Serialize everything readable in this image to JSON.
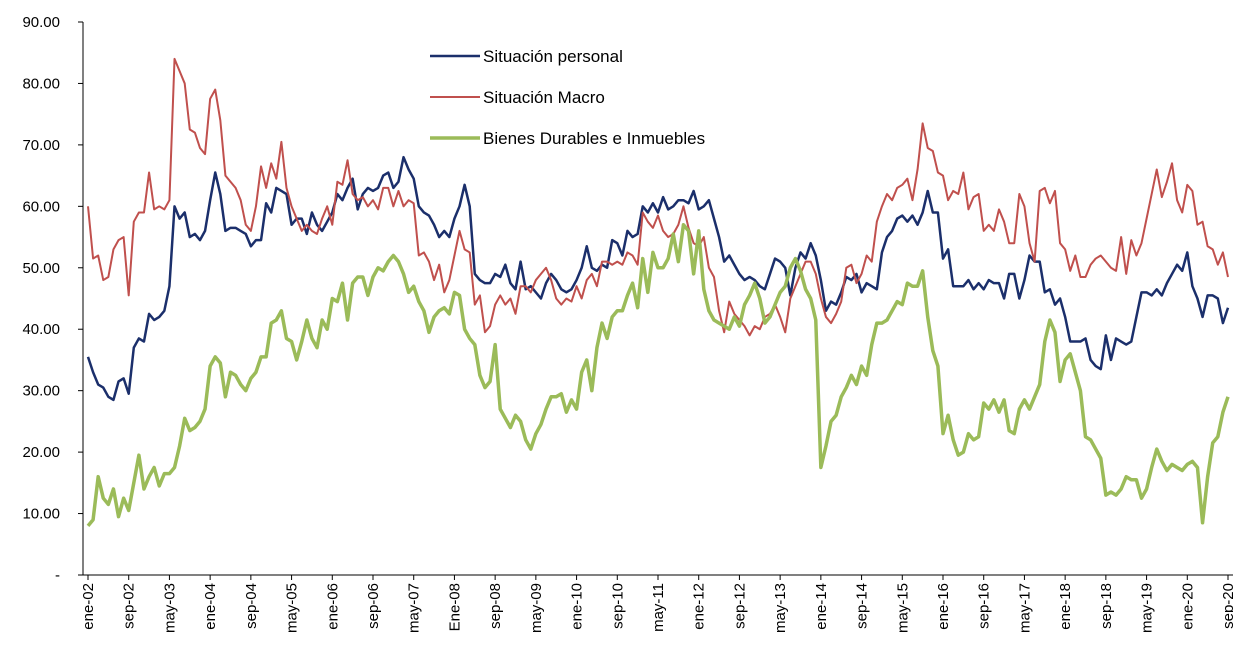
{
  "chart_data": {
    "type": "line",
    "categories": [
      "ene-02",
      null,
      null,
      null,
      null,
      null,
      null,
      null,
      "sep-02",
      null,
      null,
      null,
      null,
      null,
      null,
      null,
      "may-03",
      null,
      null,
      null,
      null,
      null,
      null,
      null,
      "ene-04",
      null,
      null,
      null,
      null,
      null,
      null,
      null,
      "sep-04",
      null,
      null,
      null,
      null,
      null,
      null,
      null,
      "may-05",
      null,
      null,
      null,
      null,
      null,
      null,
      null,
      "ene-06",
      null,
      null,
      null,
      null,
      null,
      null,
      null,
      "sep-06",
      null,
      null,
      null,
      null,
      null,
      null,
      null,
      "may-07",
      null,
      null,
      null,
      null,
      null,
      null,
      null,
      "Ene-08",
      null,
      null,
      null,
      null,
      null,
      null,
      null,
      "sep-08",
      null,
      null,
      null,
      null,
      null,
      null,
      null,
      "may-09",
      null,
      null,
      null,
      null,
      null,
      null,
      null,
      "ene-10",
      null,
      null,
      null,
      null,
      null,
      null,
      null,
      "sep-10",
      null,
      null,
      null,
      null,
      null,
      null,
      null,
      "may-11",
      null,
      null,
      null,
      null,
      null,
      null,
      null,
      "ene-12",
      null,
      null,
      null,
      null,
      null,
      null,
      null,
      "sep-12",
      null,
      null,
      null,
      null,
      null,
      null,
      null,
      "may-13",
      null,
      null,
      null,
      null,
      null,
      null,
      null,
      "ene-14",
      null,
      null,
      null,
      null,
      null,
      null,
      null,
      "sep-14",
      null,
      null,
      null,
      null,
      null,
      null,
      null,
      "may-15",
      null,
      null,
      null,
      null,
      null,
      null,
      null,
      "ene-16",
      null,
      null,
      null,
      null,
      null,
      null,
      null,
      "sep-16",
      null,
      null,
      null,
      null,
      null,
      null,
      null,
      "may-17",
      null,
      null,
      null,
      null,
      null,
      null,
      null,
      "ene-18",
      null,
      null,
      null,
      null,
      null,
      null,
      null,
      "sep-18",
      null,
      null,
      null,
      null,
      null,
      null,
      null,
      "may-19",
      null,
      null,
      null,
      null,
      null,
      null,
      null,
      "ene-20",
      null,
      null,
      null,
      null,
      null,
      null,
      null,
      "sep-20"
    ],
    "series": [
      {
        "name": "Situación personal",
        "color": "#1b2f6b",
        "values": [
          35.5,
          33,
          31,
          30.5,
          29,
          28.5,
          31.5,
          32,
          29.5,
          37,
          38.5,
          38,
          42.5,
          41.5,
          42,
          43,
          47,
          60,
          58,
          59,
          55,
          55.5,
          54.5,
          56,
          61,
          65.5,
          62,
          56,
          56.5,
          56.5,
          56,
          55.5,
          53.5,
          54.5,
          54.5,
          60.5,
          59,
          63,
          62.5,
          62,
          57,
          58,
          58,
          55.5,
          59,
          57,
          56,
          57.5,
          59,
          62,
          61,
          63,
          64.5,
          59.5,
          62,
          63,
          62.5,
          63,
          65,
          65.5,
          63,
          64,
          68,
          66,
          64.5,
          60,
          59,
          58.5,
          57,
          55,
          56,
          55,
          58,
          60,
          63.5,
          60,
          49,
          48,
          47.5,
          47.5,
          49,
          48.5,
          50.5,
          47.5,
          46.5,
          51,
          46.5,
          47,
          46,
          45,
          47.5,
          49,
          48,
          46.5,
          46,
          46.5,
          48,
          50,
          53.5,
          50,
          49.5,
          50.5,
          50,
          54.5,
          54,
          52,
          56,
          55,
          55.5,
          60,
          59,
          60.5,
          59,
          61.5,
          59.5,
          60,
          61,
          61,
          60.5,
          62.5,
          59.5,
          60,
          61,
          58,
          55,
          51,
          52,
          50.5,
          49,
          48,
          48.5,
          48,
          47,
          46.5,
          49,
          51.5,
          51,
          50,
          45.5,
          50,
          52.5,
          51.5,
          54,
          52,
          48,
          43,
          44.5,
          44,
          46,
          48.5,
          48,
          49,
          46,
          47.5,
          47,
          46.5,
          52.5,
          55,
          56,
          58,
          58.5,
          57.5,
          58.5,
          57,
          59,
          62.5,
          59,
          59,
          51.5,
          53,
          47,
          47,
          47,
          48,
          46.5,
          47.5,
          46.5,
          48,
          47.5,
          47.5,
          45,
          49,
          49,
          45,
          48,
          52,
          51,
          51,
          46,
          46.5,
          44,
          45,
          42,
          38,
          38,
          38,
          38.5,
          35,
          34,
          33.5,
          39,
          35,
          38.5,
          38,
          37.5,
          38,
          42,
          46,
          46,
          45.5,
          46.5,
          45.5,
          47.5,
          49,
          50.5,
          49.5,
          52.5,
          47,
          45,
          42,
          45.5,
          45.5,
          45,
          41,
          43.5
        ]
      },
      {
        "name": "Situación Macro",
        "color": "#c0504d",
        "values": [
          60,
          51.5,
          52,
          48,
          48.5,
          53,
          54.5,
          55,
          45.5,
          57.5,
          59,
          59,
          65.5,
          59.5,
          60,
          59.5,
          61,
          84,
          82,
          80,
          72.5,
          72,
          69.5,
          68.5,
          77.5,
          79,
          74,
          65,
          64,
          63,
          61,
          57,
          56,
          60,
          66.5,
          63,
          67,
          64.5,
          70.5,
          63,
          60,
          58,
          56,
          57,
          56,
          55.5,
          58,
          60,
          57,
          64,
          63.5,
          67.5,
          62,
          61,
          61.5,
          60,
          61,
          59.5,
          63,
          63,
          60,
          62.5,
          60,
          61,
          60.5,
          52,
          52.5,
          51,
          48,
          50.5,
          46,
          48,
          52,
          56,
          53,
          52.5,
          44,
          45.5,
          39.5,
          40.5,
          44,
          45.5,
          44,
          45,
          42.5,
          47,
          47,
          46,
          48,
          49,
          50,
          48,
          45,
          44,
          45,
          44.5,
          47,
          45,
          48,
          49,
          47,
          51,
          51,
          50.5,
          51,
          50.5,
          52.5,
          52,
          50.5,
          59,
          57.5,
          56.5,
          58.5,
          56,
          55,
          55.5,
          57,
          60,
          56.5,
          54,
          53.5,
          55,
          50,
          48.5,
          43,
          39.5,
          44.5,
          42.5,
          41.5,
          40.5,
          39,
          40.5,
          40,
          42,
          42.5,
          44,
          42,
          39.5,
          45,
          47,
          49,
          51,
          51,
          49,
          45,
          42,
          41,
          42.5,
          44.5,
          50,
          50.5,
          47.5,
          49,
          52,
          51,
          57.5,
          60,
          62,
          61,
          63,
          63.5,
          64.5,
          61,
          66,
          73.5,
          69.5,
          69,
          65.5,
          65,
          61,
          62.5,
          62,
          65.5,
          59.5,
          61.5,
          62,
          56,
          57,
          56,
          59.5,
          57.5,
          54,
          54,
          62,
          60,
          54,
          51,
          62.5,
          63,
          60.5,
          62.5,
          54,
          53,
          49.5,
          52,
          48.5,
          48.5,
          50.5,
          51.5,
          52,
          51,
          50,
          49.5,
          55,
          49,
          54.5,
          52,
          54,
          58,
          62,
          66,
          61.5,
          64,
          67,
          61,
          59,
          63.5,
          62.5,
          57,
          57.5,
          53.5,
          53,
          50.5,
          52.5,
          48.5
        ]
      },
      {
        "name": "Bienes Durables e Inmuebles",
        "color": "#9bbb59",
        "values": [
          8,
          9,
          16,
          12.5,
          11.5,
          14,
          9.5,
          12.5,
          10.5,
          15,
          19.5,
          14,
          16,
          17.5,
          14.5,
          16.5,
          16.5,
          17.5,
          21,
          25.5,
          23.5,
          24,
          25,
          27,
          34,
          35.5,
          34.5,
          29,
          33,
          32.5,
          31,
          30,
          32,
          33,
          35.5,
          35.5,
          41,
          41.5,
          43,
          38.5,
          38,
          35,
          38,
          41.5,
          38.5,
          37,
          41.5,
          40,
          45,
          44.5,
          47.5,
          41.5,
          47.5,
          48.5,
          48.5,
          45.5,
          48.5,
          50,
          49.5,
          51,
          52,
          51,
          49,
          46,
          47,
          44.5,
          43,
          39.5,
          42,
          43,
          43.5,
          42.5,
          46,
          45.5,
          40,
          38.5,
          37.5,
          32.5,
          30.5,
          31.5,
          37.5,
          27,
          25.5,
          24,
          26,
          25,
          22,
          20.5,
          23,
          24.5,
          27,
          29,
          29,
          29.5,
          26.5,
          28.5,
          27,
          33,
          35,
          30,
          37,
          41,
          38.5,
          42,
          43,
          43,
          45.5,
          47.5,
          43.5,
          51.5,
          46,
          52.5,
          50,
          50,
          51.5,
          55.5,
          51,
          57,
          56,
          49,
          56,
          46.5,
          43,
          41.5,
          41,
          40.5,
          40,
          42,
          40.5,
          44,
          45.5,
          47.5,
          45,
          41,
          42,
          44,
          46,
          47,
          50,
          51.5,
          49.5,
          46.5,
          45,
          41.5,
          17.5,
          21,
          25,
          26,
          29,
          30.5,
          32.5,
          31,
          34,
          32.5,
          37.5,
          41,
          41,
          41.5,
          43,
          44.5,
          44,
          47.5,
          47,
          47,
          49.5,
          42,
          36.5,
          34,
          23,
          26,
          22,
          19.5,
          20,
          23,
          22,
          22.5,
          28,
          27,
          28.5,
          26.5,
          28.5,
          23.5,
          23,
          27,
          28.5,
          27,
          29,
          31,
          38,
          41.5,
          39.5,
          31.5,
          35,
          36,
          33,
          30,
          22.5,
          22,
          20.5,
          19,
          13,
          13.5,
          13,
          14,
          16,
          15.5,
          15.5,
          12.5,
          14,
          17.5,
          20.5,
          18.5,
          17,
          18,
          17.5,
          17,
          18,
          18.5,
          17.5,
          8.5,
          16,
          21.5,
          22.5,
          26.5,
          29
        ]
      }
    ],
    "ylim": [
      0,
      90
    ],
    "yticks": [
      {
        "value": 0,
        "label": "-"
      },
      {
        "value": 10,
        "label": "10.00"
      },
      {
        "value": 20,
        "label": "20.00"
      },
      {
        "value": 30,
        "label": "30.00"
      },
      {
        "value": 40,
        "label": "40.00"
      },
      {
        "value": 50,
        "label": "50.00"
      },
      {
        "value": 60,
        "label": "60.00"
      },
      {
        "value": 70,
        "label": "70.00"
      },
      {
        "value": 80,
        "label": "80.00"
      },
      {
        "value": 90,
        "label": "90.00"
      }
    ],
    "grid": false
  }
}
